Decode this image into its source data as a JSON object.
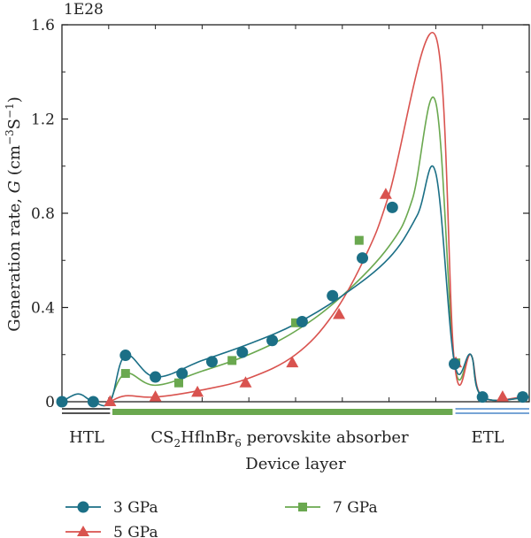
{
  "chart_data": {
    "type": "line",
    "multiplier_label": "1E28",
    "xlabel": "Device layer",
    "ylabel_text": "Generation rate, ",
    "ylabel_var": "G",
    "ylabel_unit_open": " (cm",
    "ylabel_exp1": "−3",
    "ylabel_mid": "S",
    "ylabel_exp2": "−1",
    "ylabel_close": ")",
    "xlim": [
      0,
      1
    ],
    "ylim": [
      0,
      1.6
    ],
    "yticks": [
      {
        "value": 0,
        "label": "0"
      },
      {
        "value": 0.4,
        "label": "0.4"
      },
      {
        "value": 0.8,
        "label": "0.8"
      },
      {
        "value": 1.2,
        "label": "1.2"
      },
      {
        "value": 1.6,
        "label": "1.6"
      }
    ],
    "layers": [
      {
        "name": "HTL",
        "start": 0.0,
        "end": 0.103,
        "color": "#1a1a1a"
      },
      {
        "name_main": "CS",
        "sub1": "2",
        "name_mid": "HflnBr",
        "sub2": "6",
        "name_rest": " perovskite absorber",
        "start": 0.108,
        "end": 0.836,
        "color": "#6aa84f"
      },
      {
        "name": "ETL",
        "start": 0.842,
        "end": 1.0,
        "color": "#4a86c8"
      }
    ],
    "series": [
      {
        "name": "3 GPa",
        "color": "#1b6f86",
        "marker": "circle",
        "line": [
          [
            0,
            0
          ],
          [
            0.035,
            0.033
          ],
          [
            0.067,
            0
          ],
          [
            0.103,
            0
          ],
          [
            0.136,
            0.197
          ],
          [
            0.2,
            0.105
          ],
          [
            0.3,
            0.175
          ],
          [
            0.4,
            0.245
          ],
          [
            0.5,
            0.33
          ],
          [
            0.6,
            0.45
          ],
          [
            0.7,
            0.61
          ],
          [
            0.76,
            0.79
          ],
          [
            0.8,
            0.97
          ],
          [
            0.84,
            0.165
          ],
          [
            0.875,
            0.2
          ],
          [
            0.9,
            0.02
          ],
          [
            1.0,
            0.02
          ]
        ],
        "markers": [
          [
            0,
            0
          ],
          [
            0.067,
            0
          ],
          [
            0.136,
            0.197
          ],
          [
            0.2,
            0.105
          ],
          [
            0.257,
            0.12
          ],
          [
            0.321,
            0.17
          ],
          [
            0.386,
            0.21
          ],
          [
            0.45,
            0.26
          ],
          [
            0.514,
            0.34
          ],
          [
            0.579,
            0.45
          ],
          [
            0.643,
            0.61
          ],
          [
            0.707,
            0.825
          ],
          [
            0.84,
            0.16
          ],
          [
            0.9,
            0.02
          ],
          [
            0.986,
            0.02
          ]
        ]
      },
      {
        "name": "5 GPa",
        "color": "#d9534f",
        "marker": "triangle",
        "line": [
          [
            0.103,
            0
          ],
          [
            0.136,
            0.025
          ],
          [
            0.2,
            0.02
          ],
          [
            0.3,
            0.05
          ],
          [
            0.4,
            0.1
          ],
          [
            0.5,
            0.2
          ],
          [
            0.58,
            0.37
          ],
          [
            0.65,
            0.62
          ],
          [
            0.7,
            0.88
          ],
          [
            0.8,
            1.55
          ],
          [
            0.84,
            0.165
          ],
          [
            0.875,
            0.2
          ],
          [
            0.9,
            0.02
          ],
          [
            0.986,
            0.02
          ]
        ],
        "markers": [
          [
            0.103,
            0
          ],
          [
            0.2,
            0.02
          ],
          [
            0.29,
            0.04
          ],
          [
            0.393,
            0.08
          ],
          [
            0.493,
            0.165
          ],
          [
            0.593,
            0.37
          ],
          [
            0.693,
            0.88
          ],
          [
            0.843,
            0.165
          ],
          [
            0.943,
            0.02
          ]
        ]
      },
      {
        "name": "7 GPa",
        "color": "#6aa84f",
        "marker": "square",
        "line": [
          [
            0.103,
            0
          ],
          [
            0.136,
            0.12
          ],
          [
            0.2,
            0.07
          ],
          [
            0.3,
            0.13
          ],
          [
            0.4,
            0.2
          ],
          [
            0.5,
            0.3
          ],
          [
            0.6,
            0.45
          ],
          [
            0.7,
            0.66
          ],
          [
            0.75,
            0.86
          ],
          [
            0.8,
            1.27
          ],
          [
            0.84,
            0.165
          ],
          [
            0.875,
            0.2
          ],
          [
            0.9,
            0.02
          ],
          [
            1.0,
            0.02
          ]
        ],
        "markers": [
          [
            0.136,
            0.12
          ],
          [
            0.25,
            0.08
          ],
          [
            0.364,
            0.175
          ],
          [
            0.5,
            0.335
          ],
          [
            0.636,
            0.685
          ],
          [
            0.843,
            0.165
          ],
          [
            0.986,
            0.02
          ]
        ]
      }
    ],
    "legend": {
      "placement": "bottom-left",
      "columns": 2
    }
  }
}
